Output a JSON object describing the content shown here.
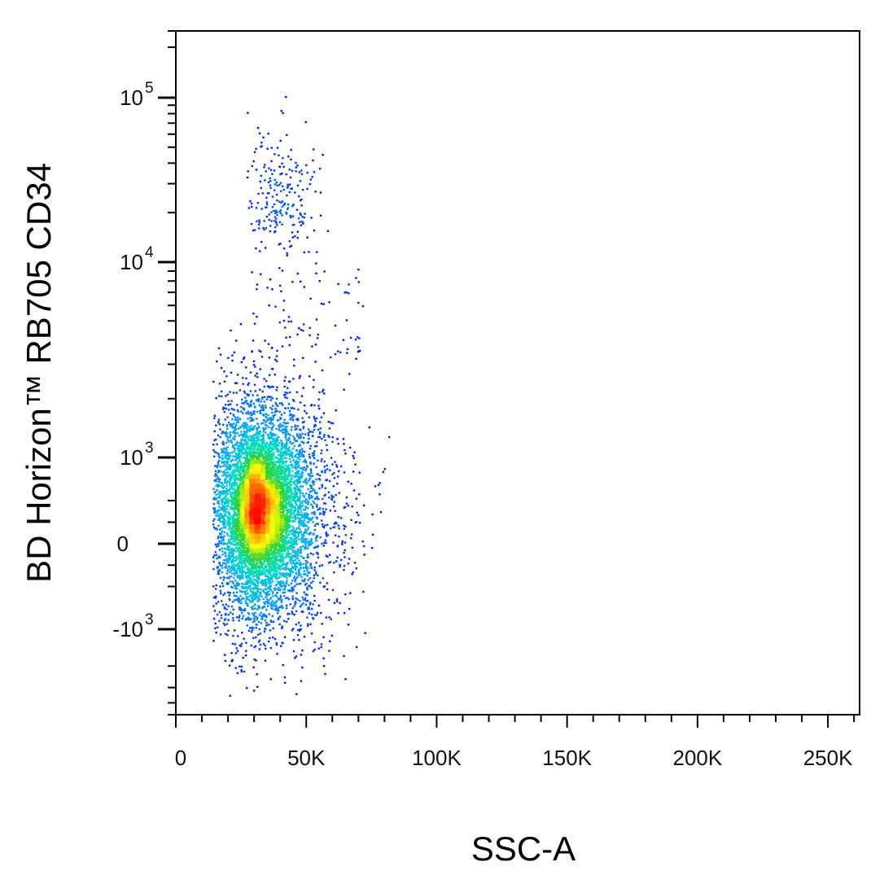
{
  "chart_data": {
    "type": "scatter",
    "subtype": "flow-cytometry-density-dot-plot",
    "title": "",
    "xlabel": "SSC-A",
    "ylabel": "BD Horizon™ RB705 CD34",
    "x_axis": {
      "scale": "linear",
      "range": [
        0,
        262144
      ],
      "ticks": [
        {
          "value": 0,
          "label": "0"
        },
        {
          "value": 50000,
          "label": "50K"
        },
        {
          "value": 100000,
          "label": "100K"
        },
        {
          "value": 150000,
          "label": "150K"
        },
        {
          "value": 200000,
          "label": "200K"
        },
        {
          "value": 250000,
          "label": "250K"
        }
      ]
    },
    "y_axis": {
      "scale": "biexponential",
      "range": [
        -5000,
        250000
      ],
      "ticks": [
        {
          "value": -1000,
          "base": "-10",
          "exp": "3"
        },
        {
          "value": 0,
          "base": "0",
          "exp": ""
        },
        {
          "value": 1000,
          "base": "10",
          "exp": "3"
        },
        {
          "value": 10000,
          "base": "10",
          "exp": "4"
        },
        {
          "value": 100000,
          "base": "10",
          "exp": "5"
        }
      ]
    },
    "grid": false,
    "legend": "none",
    "color_scale": [
      "#0000ff",
      "#00a0ff",
      "#00e0c0",
      "#30d030",
      "#ffff00",
      "#ff8000",
      "#ff0000"
    ],
    "populations": [
      {
        "center_x": 32000,
        "center_y": 400,
        "density": "very high",
        "x_extent": [
          14000,
          82000
        ],
        "y_extent": [
          -3500,
          5000
        ]
      },
      {
        "center_x": 40000,
        "center_y": 25000,
        "density": "sparse",
        "x_extent": [
          25000,
          77000
        ],
        "y_extent": [
          7000,
          110000
        ]
      }
    ]
  }
}
